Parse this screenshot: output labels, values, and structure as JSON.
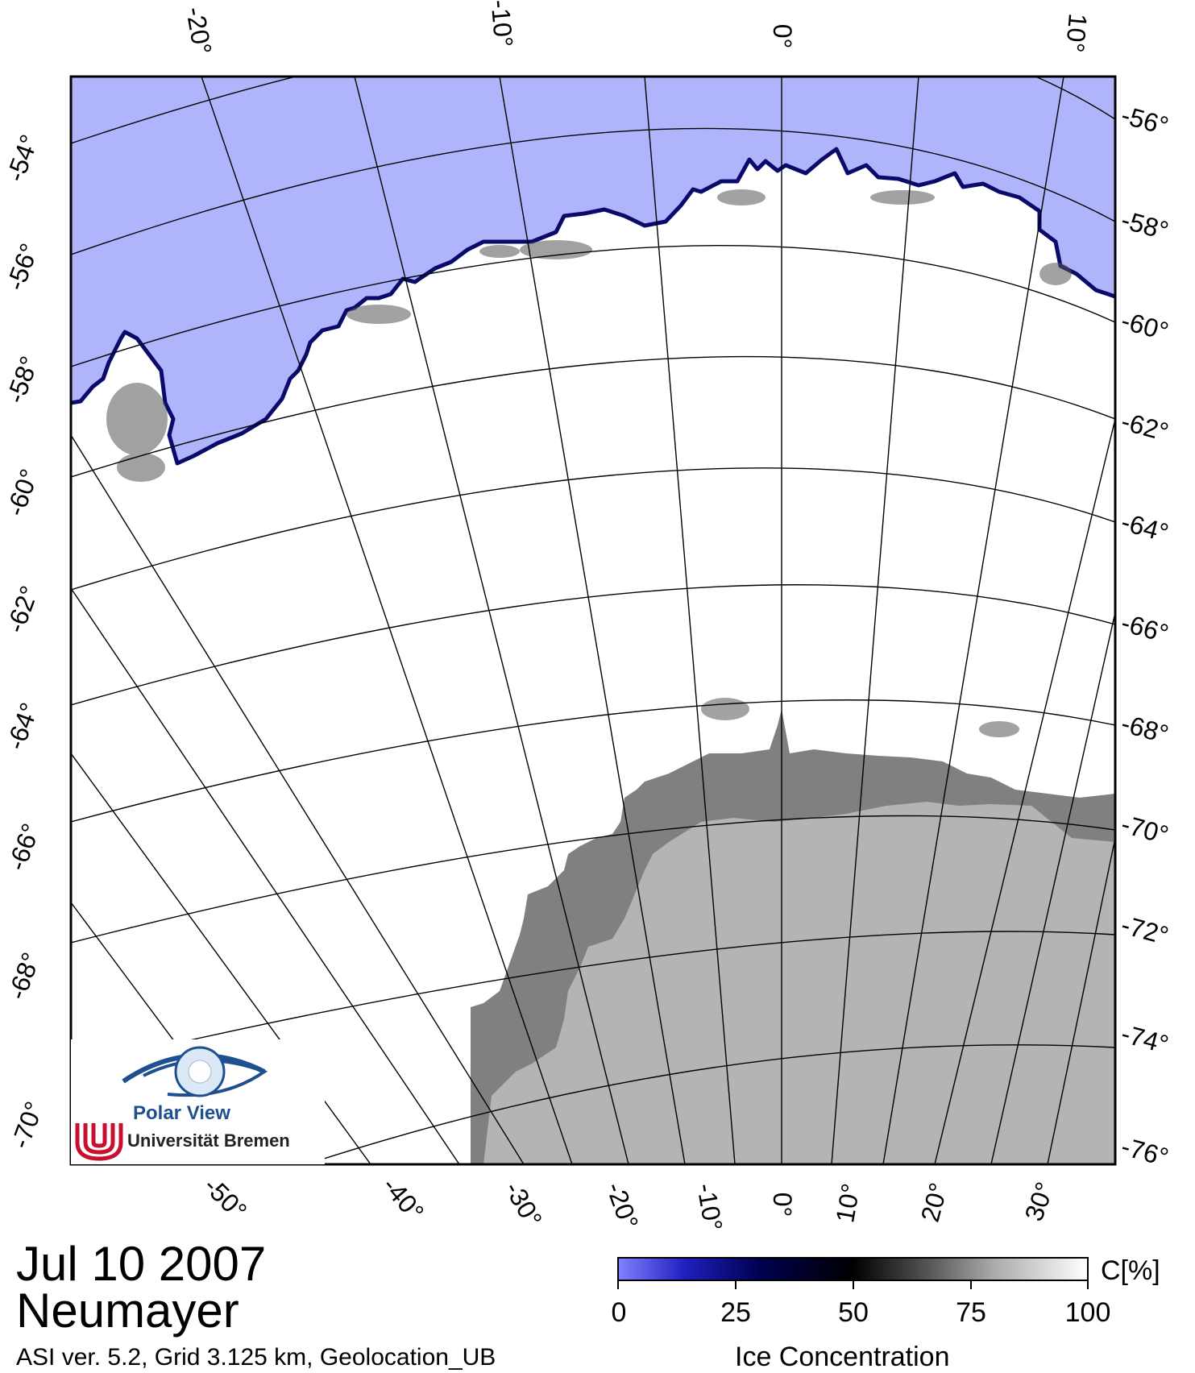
{
  "map": {
    "top_lon_labels": [
      "-20°",
      "-10°",
      "0°",
      "10°"
    ],
    "left_lat_labels": [
      "-54°",
      "-56°",
      "-58°",
      "-60°",
      "-62°",
      "-64°",
      "-66°",
      "-68°",
      "-70°"
    ],
    "right_lat_labels": [
      "-56°",
      "-58°",
      "-60°",
      "-62°",
      "-64°",
      "-66°",
      "-68°",
      "-70°",
      "-72°",
      "-74°",
      "-76°"
    ],
    "bottom_lon_labels": [
      "-50°",
      "-40°",
      "-30°",
      "-20°",
      "-10°",
      "0°",
      "10°",
      "20°",
      "30°"
    ],
    "colors": {
      "open_water": "#b0b4fa",
      "ice": "#ffffff",
      "ice_edge": "#0a0a6a",
      "ice_shelf": "#808080",
      "land": "#b4b4b4",
      "frame": "#000000"
    }
  },
  "info": {
    "date": "Jul 10 2007",
    "station": "Neumayer",
    "meta": "ASI ver. 5.2,  Grid 3.125 km, Geolocation_UB"
  },
  "colorbar": {
    "unit": "C[%]",
    "ticks": [
      "0",
      "25",
      "50",
      "75",
      "100"
    ],
    "title": "Ice Concentration"
  },
  "logo": {
    "name": "Polar View",
    "institution": "Universität Bremen"
  }
}
